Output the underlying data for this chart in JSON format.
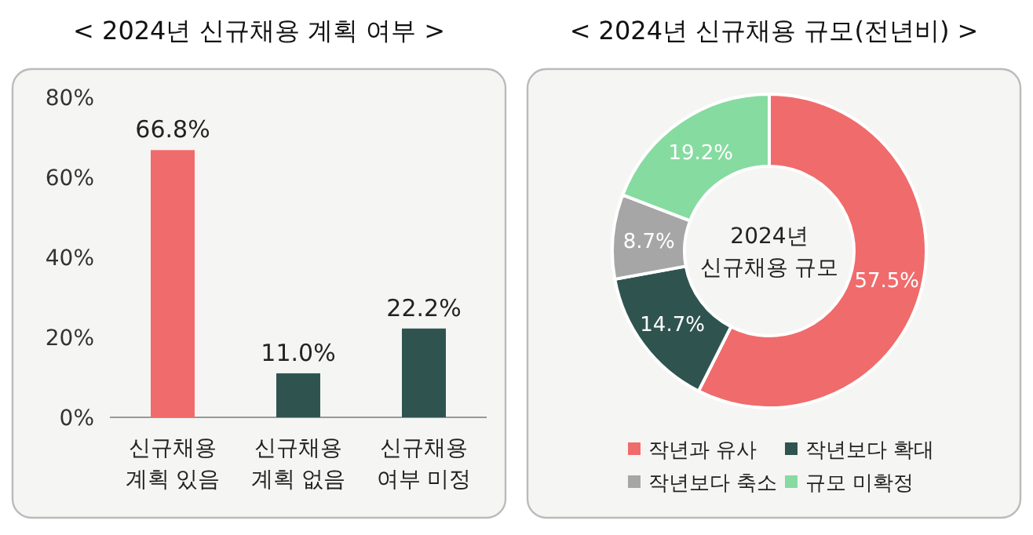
{
  "chart_data": [
    {
      "type": "bar",
      "title": "< 2024년 신규채용 계획 여부 >",
      "categories": [
        "신규채용\n계획 있음",
        "신규채용\n계획 없음",
        "신규채용\n여부 미정"
      ],
      "values": [
        66.8,
        11.0,
        22.2
      ],
      "colors": [
        "#f06b6b",
        "#2f5450",
        "#2f5450"
      ],
      "value_labels": [
        "66.8%",
        "11.0%",
        "22.2%"
      ],
      "ylim": [
        0,
        80
      ],
      "yticks": [
        {
          "value": 0,
          "label": "0%"
        },
        {
          "value": 20,
          "label": "20%"
        },
        {
          "value": 40,
          "label": "40%"
        },
        {
          "value": 60,
          "label": "60%"
        },
        {
          "value": 80,
          "label": "80%"
        }
      ],
      "grid": false
    },
    {
      "type": "donut",
      "title": "< 2024년 신규채용 규모(전년비) >",
      "categories": [
        "작년과 유사",
        "작년보다 확대",
        "작년보다 축소",
        "규모 미확정"
      ],
      "values": [
        57.5,
        14.7,
        8.7,
        19.2
      ],
      "colors": [
        "#f06b6b",
        "#2f5450",
        "#a6a6a6",
        "#86dba0"
      ],
      "value_labels": [
        "57.5%",
        "14.7%",
        "8.7%",
        "19.2%"
      ],
      "annotations": [
        "2024년\n신규채용 규모"
      ],
      "legend": "bottom"
    }
  ]
}
